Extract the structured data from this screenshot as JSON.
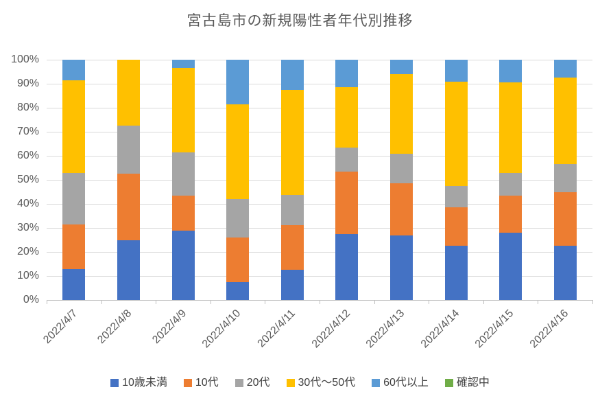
{
  "chart_data": {
    "type": "bar",
    "variant": "100%-stacked-column",
    "title": "宮古島市の新規陽性者年代別推移",
    "categories": [
      "2022/4/7",
      "2022/4/8",
      "2022/4/9",
      "2022/4/10",
      "2022/4/11",
      "2022/4/12",
      "2022/4/13",
      "2022/4/14",
      "2022/4/15",
      "2022/4/16"
    ],
    "series": [
      {
        "name": "10歳未満",
        "color": "#4472C4",
        "values": [
          13,
          25,
          29,
          7.5,
          12.5,
          27.5,
          27,
          22.5,
          28,
          22.5
        ]
      },
      {
        "name": "10代",
        "color": "#ED7D31",
        "values": [
          18.5,
          27.5,
          14.5,
          18.5,
          18.75,
          26,
          21.5,
          16,
          15.5,
          22.5
        ]
      },
      {
        "name": "20代",
        "color": "#A5A5A5",
        "values": [
          21.5,
          20,
          18,
          16,
          12.5,
          10,
          12.5,
          9,
          9.5,
          11.5
        ]
      },
      {
        "name": "30代〜50代",
        "color": "#FFC000",
        "values": [
          38.5,
          27.5,
          35,
          39.5,
          43.75,
          25,
          33,
          43.5,
          37.5,
          36
        ]
      },
      {
        "name": "60代以上",
        "color": "#5B9BD5",
        "values": [
          8.5,
          0,
          3.5,
          18.5,
          12.5,
          11.5,
          6,
          9,
          9.5,
          7.5
        ]
      },
      {
        "name": "確認中",
        "color": "#70AD47",
        "values": [
          0,
          0,
          0,
          0,
          0,
          0,
          0,
          0,
          0,
          0
        ]
      }
    ],
    "values_unit": "percent_share",
    "y_ticks": [
      "100%",
      "90%",
      "80%",
      "70%",
      "60%",
      "50%",
      "40%",
      "30%",
      "20%",
      "10%",
      "0%"
    ],
    "ylim": [
      0,
      100
    ],
    "grid": true,
    "legend_position": "bottom",
    "colors": {
      "title_text": "#595959",
      "axis_text": "#595959",
      "legend_text": "#404040",
      "gridline": "#D9D9D9",
      "axis_line": "#BFBFBF",
      "background": "#FFFFFF"
    }
  }
}
